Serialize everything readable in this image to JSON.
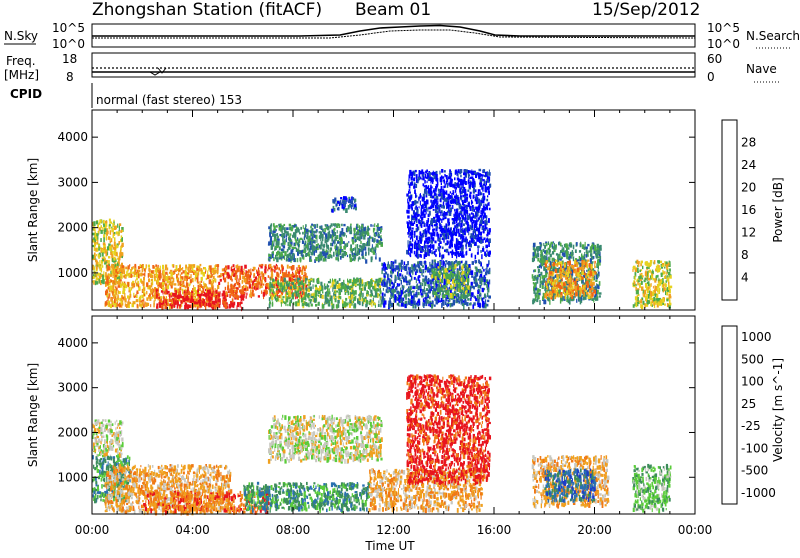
{
  "header": {
    "station": "Zhongshan Station (fitACF)",
    "beam": "Beam 01",
    "date": "15/Sep/2012"
  },
  "top_panels": {
    "nsky_label": "N.Sky",
    "nsky_ticks": [
      "10^5",
      "10^0"
    ],
    "nsearch_label": "N.Search",
    "nsearch_ticks": [
      "10^5",
      "10^0"
    ],
    "freq_label": "Freq.",
    "freq_unit": "[MHz]",
    "freq_ticks": [
      "18",
      "8"
    ],
    "nave_label": "Nave",
    "nave_ticks": [
      "60",
      "0"
    ],
    "cpid_label": "CPID",
    "cpid_text": "normal (fast stereo) 153"
  },
  "colors": {
    "power": [
      "#0000ff",
      "#1f4fb0",
      "#3a8a70",
      "#4caa4a",
      "#e6d21e",
      "#f0a01e",
      "#f06414",
      "#e8141e"
    ],
    "velocity": [
      "#1e3cc8",
      "#2a70b0",
      "#3c8c5a",
      "#5acc3a",
      "#c8c8c0",
      "#f0a01e",
      "#f07814",
      "#e8141e"
    ]
  },
  "chart_data": [
    {
      "type": "heatmap",
      "quantity": "Power",
      "xlabel": "Time UT",
      "ylabel": "Slant Range [km]",
      "x_ticks": [
        "00:00",
        "04:00",
        "08:00",
        "12:00",
        "16:00",
        "20:00",
        "00:00"
      ],
      "x_range_hours": [
        0,
        24
      ],
      "y_ticks": [
        1000,
        2000,
        3000,
        4000
      ],
      "ylim": [
        180,
        4600
      ],
      "colorbar_label": "Power [dB]",
      "colorbar_ticks": [
        4,
        8,
        12,
        16,
        20,
        24,
        28
      ],
      "regions": [
        {
          "t": [
            0.0,
            1.2
          ],
          "r": [
            800,
            2200
          ],
          "level": 4
        },
        {
          "t": [
            0.5,
            5.0
          ],
          "r": [
            300,
            1200
          ],
          "level": 5
        },
        {
          "t": [
            2.5,
            6.0
          ],
          "r": [
            250,
            650
          ],
          "level": 7
        },
        {
          "t": [
            5.0,
            8.5
          ],
          "r": [
            500,
            1200
          ],
          "level": 6
        },
        {
          "t": [
            7.0,
            11.5
          ],
          "r": [
            300,
            900
          ],
          "level": 3
        },
        {
          "t": [
            7.0,
            11.5
          ],
          "r": [
            1300,
            2100
          ],
          "level": 2
        },
        {
          "t": [
            9.5,
            10.5
          ],
          "r": [
            2400,
            2700
          ],
          "level": 1
        },
        {
          "t": [
            11.5,
            15.8
          ],
          "r": [
            300,
            1300
          ],
          "level": 1
        },
        {
          "t": [
            12.5,
            15.8
          ],
          "r": [
            1400,
            3300
          ],
          "level": 0
        },
        {
          "t": [
            13.5,
            15.0
          ],
          "r": [
            500,
            1200
          ],
          "level": 3
        },
        {
          "t": [
            17.5,
            20.2
          ],
          "r": [
            400,
            1700
          ],
          "level": 2
        },
        {
          "t": [
            18.0,
            20.0
          ],
          "r": [
            500,
            1300
          ],
          "level": 5
        },
        {
          "t": [
            21.5,
            23.0
          ],
          "r": [
            300,
            1300
          ],
          "level": 4
        }
      ]
    },
    {
      "type": "heatmap",
      "quantity": "Velocity",
      "xlabel": "Time UT",
      "ylabel": "Slant Range [km]",
      "x_ticks": [
        "00:00",
        "04:00",
        "08:00",
        "12:00",
        "16:00",
        "20:00",
        "00:00"
      ],
      "x_range_hours": [
        0,
        24
      ],
      "y_ticks": [
        1000,
        2000,
        3000,
        4000
      ],
      "ylim": [
        180,
        4600
      ],
      "colorbar_label": "Velocity [m s^-1]",
      "colorbar_ticks": [
        "1000",
        "500",
        "100",
        "25",
        "-25",
        "-100",
        "-500",
        "-1000"
      ],
      "regions": [
        {
          "t": [
            0.0,
            1.2
          ],
          "r": [
            1500,
            2300
          ],
          "level": 4
        },
        {
          "t": [
            0.0,
            1.5
          ],
          "r": [
            500,
            1500
          ],
          "level": 2
        },
        {
          "t": [
            0.5,
            5.5
          ],
          "r": [
            250,
            1300
          ],
          "level": 5
        },
        {
          "t": [
            2.0,
            7.0
          ],
          "r": [
            250,
            700
          ],
          "level": 6
        },
        {
          "t": [
            6.0,
            11.0
          ],
          "r": [
            300,
            900
          ],
          "level": 2
        },
        {
          "t": [
            7.0,
            11.5
          ],
          "r": [
            1400,
            2400
          ],
          "level": 4
        },
        {
          "t": [
            11.0,
            15.5
          ],
          "r": [
            300,
            1200
          ],
          "level": 5
        },
        {
          "t": [
            12.5,
            15.8
          ],
          "r": [
            900,
            3300
          ],
          "level": 7
        },
        {
          "t": [
            17.5,
            20.5
          ],
          "r": [
            400,
            1500
          ],
          "level": 5
        },
        {
          "t": [
            18.0,
            20.0
          ],
          "r": [
            500,
            1200
          ],
          "level": 1
        },
        {
          "t": [
            21.5,
            23.0
          ],
          "r": [
            300,
            1300
          ],
          "level": 3
        }
      ]
    }
  ]
}
